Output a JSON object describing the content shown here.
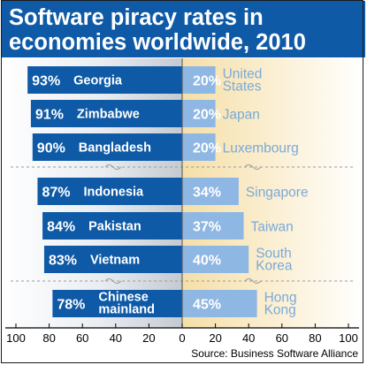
{
  "title_lines": [
    "Software piracy rates in",
    "economies worldwide, 2010"
  ],
  "source": "Source: Business Software Alliance",
  "colors": {
    "title_background": "#0f5aa6",
    "left_bar": "#0f5aa6",
    "right_bar": "#8fb7e3",
    "right_label": "#7aa9d9",
    "left_bar_text": "#ffffff"
  },
  "chart_data": {
    "type": "bar",
    "orientation": "horizontal-diverging",
    "xlim": [
      -100,
      100
    ],
    "x_ticks": [
      -100,
      -80,
      -60,
      -40,
      -20,
      0,
      20,
      40,
      60,
      80,
      100
    ],
    "x_tick_labels": [
      "100",
      "80",
      "60",
      "40",
      "20",
      "0",
      "20",
      "40",
      "60",
      "80",
      "100"
    ],
    "groups": [
      {
        "rows": [
          0,
          1,
          2
        ]
      },
      {
        "rows": [
          3,
          4,
          5
        ]
      },
      {
        "rows": [
          6
        ]
      }
    ],
    "rows": [
      {
        "left_label": [
          "Georgia"
        ],
        "left_value": 93,
        "left_text": "93%",
        "right_label": [
          "United",
          "States"
        ],
        "right_value": 20,
        "right_text": "20%"
      },
      {
        "left_label": [
          "Zimbabwe"
        ],
        "left_value": 91,
        "left_text": "91%",
        "right_label": [
          "Japan"
        ],
        "right_value": 20,
        "right_text": "20%"
      },
      {
        "left_label": [
          "Bangladesh"
        ],
        "left_value": 90,
        "left_text": "90%",
        "right_label": [
          "Luxembourg"
        ],
        "right_value": 20,
        "right_text": "20%"
      },
      {
        "left_label": [
          "Indonesia"
        ],
        "left_value": 87,
        "left_text": "87%",
        "right_label": [
          "Singapore"
        ],
        "right_value": 34,
        "right_text": "34%"
      },
      {
        "left_label": [
          "Pakistan"
        ],
        "left_value": 84,
        "left_text": "84%",
        "right_label": [
          "Taiwan"
        ],
        "right_value": 37,
        "right_text": "37%"
      },
      {
        "left_label": [
          "Vietnam"
        ],
        "left_value": 83,
        "left_text": "83%",
        "right_label": [
          "South",
          "Korea"
        ],
        "right_value": 40,
        "right_text": "40%"
      },
      {
        "left_label": [
          "Chinese",
          "mainland"
        ],
        "left_value": 78,
        "left_text": "78%",
        "right_label": [
          "Hong",
          "Kong"
        ],
        "right_value": 45,
        "right_text": "45%"
      }
    ]
  }
}
